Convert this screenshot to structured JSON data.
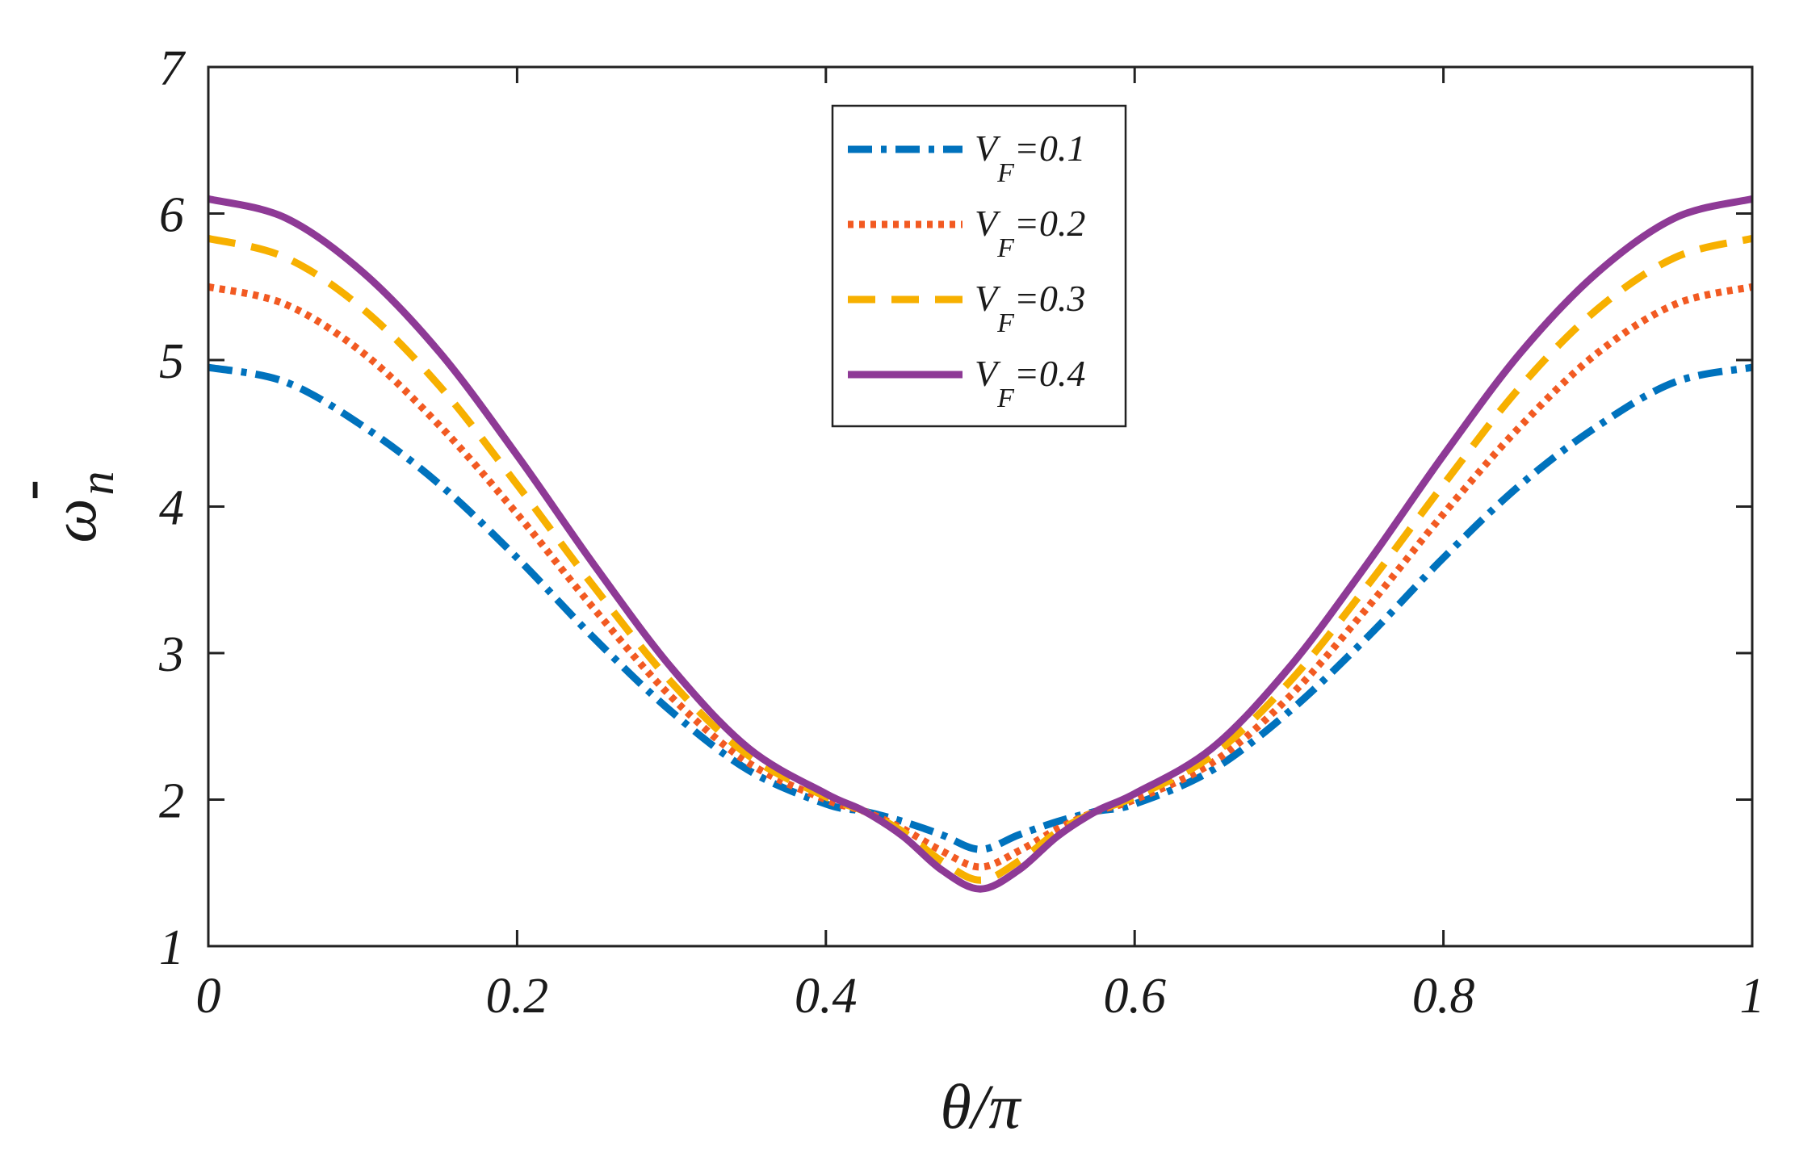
{
  "chart_data": {
    "type": "line",
    "xlabel": "θ/π",
    "ylabel_base": "ω",
    "ylabel_sub": "n",
    "ylabel_mark": "-",
    "xlim": [
      0,
      1
    ],
    "ylim": [
      1,
      7
    ],
    "xticks": [
      0,
      0.2,
      0.4,
      0.6,
      0.8,
      1
    ],
    "xtick_labels": [
      "0",
      "0.2",
      "0.4",
      "0.6",
      "0.8",
      "1"
    ],
    "yticks": [
      1,
      2,
      3,
      4,
      5,
      6,
      7
    ],
    "ytick_labels": [
      "1",
      "2",
      "3",
      "4",
      "5",
      "6",
      "7"
    ],
    "grid": false,
    "legend_position": "top-center",
    "x": [
      0,
      0.05,
      0.1,
      0.15,
      0.2,
      0.25,
      0.3,
      0.35,
      0.4,
      0.425,
      0.45,
      0.475,
      0.5,
      0.525,
      0.55,
      0.575,
      0.6,
      0.65,
      0.7,
      0.75,
      0.8,
      0.85,
      0.9,
      0.95,
      1
    ],
    "series": [
      {
        "name": "V_F=0.1",
        "legend_base": "V",
        "legend_sub": "F",
        "legend_value": "=0.1",
        "color": "#0072BD",
        "style": "dashdot",
        "values": [
          4.95,
          4.85,
          4.55,
          4.15,
          3.65,
          3.1,
          2.6,
          2.2,
          1.97,
          1.92,
          1.85,
          1.76,
          1.66,
          1.76,
          1.85,
          1.92,
          1.97,
          2.2,
          2.6,
          3.1,
          3.65,
          4.15,
          4.55,
          4.85,
          4.95
        ]
      },
      {
        "name": "V_F=0.2",
        "legend_base": "V",
        "legend_sub": "F",
        "legend_value": "=0.2",
        "color": "#F25A22",
        "style": "dotted",
        "values": [
          5.5,
          5.38,
          5.05,
          4.55,
          3.95,
          3.3,
          2.7,
          2.25,
          2.0,
          1.92,
          1.8,
          1.65,
          1.54,
          1.65,
          1.8,
          1.92,
          2.0,
          2.25,
          2.7,
          3.3,
          3.95,
          4.55,
          5.05,
          5.38,
          5.5
        ]
      },
      {
        "name": "V_F=0.3",
        "legend_base": "V",
        "legend_sub": "F",
        "legend_value": "=0.3",
        "color": "#F7B000",
        "style": "dashed",
        "values": [
          5.83,
          5.7,
          5.35,
          4.82,
          4.15,
          3.45,
          2.8,
          2.3,
          2.02,
          1.92,
          1.78,
          1.58,
          1.45,
          1.58,
          1.78,
          1.92,
          2.02,
          2.3,
          2.8,
          3.45,
          4.15,
          4.82,
          5.35,
          5.7,
          5.83
        ]
      },
      {
        "name": "V_F=0.4",
        "legend_base": "V",
        "legend_sub": "F",
        "legend_value": "=0.4",
        "color": "#8E3A96",
        "style": "solid",
        "values": [
          6.1,
          5.97,
          5.6,
          5.05,
          4.35,
          3.6,
          2.9,
          2.35,
          2.04,
          1.92,
          1.75,
          1.52,
          1.39,
          1.52,
          1.75,
          1.92,
          2.04,
          2.35,
          2.9,
          3.6,
          4.35,
          5.05,
          5.6,
          5.97,
          6.1
        ]
      }
    ]
  }
}
